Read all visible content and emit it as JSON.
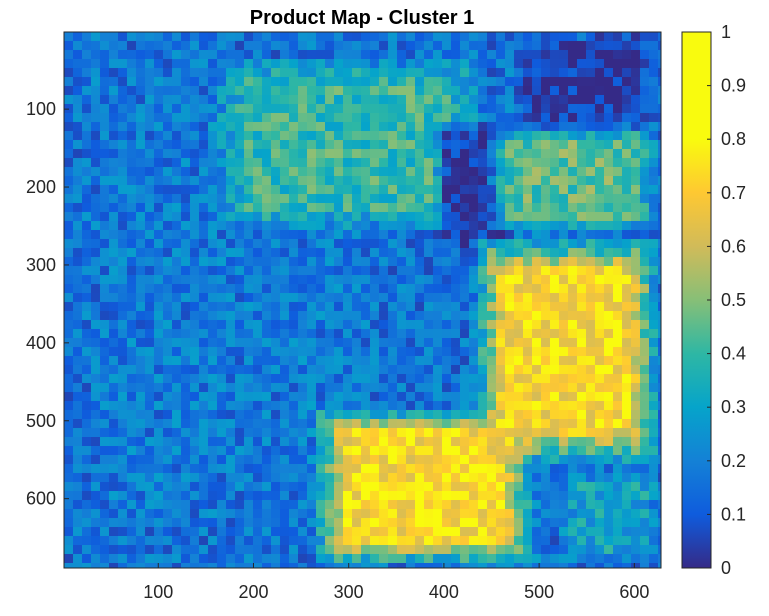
{
  "chart_data": {
    "type": "heatmap",
    "title": "Product Map - Cluster 1",
    "xlabel": "",
    "ylabel": "",
    "xlim": [
      1,
      628
    ],
    "ylim": [
      1,
      689
    ],
    "y_direction": "reversed",
    "grid": false,
    "x_ticks": [
      100,
      200,
      300,
      400,
      500,
      600
    ],
    "x_tick_labels": [
      "100",
      "200",
      "300",
      "400",
      "500",
      "600"
    ],
    "y_ticks": [
      100,
      200,
      300,
      400,
      500,
      600
    ],
    "y_tick_labels": [
      "100",
      "200",
      "300",
      "400",
      "500",
      "600"
    ],
    "colorbar": {
      "position": "right",
      "range": [
        0,
        1
      ],
      "ticks": [
        0,
        0.1,
        0.2,
        0.3,
        0.4,
        0.5,
        0.6,
        0.7,
        0.8,
        0.9,
        1
      ],
      "tick_labels": [
        "0",
        "0.1",
        "0.2",
        "0.3",
        "0.4",
        "0.5",
        "0.6",
        "0.7",
        "0.8",
        "0.9",
        "1"
      ],
      "colormap": "parula"
    },
    "regions": [
      {
        "x": [
          10,
          340
        ],
        "y": [
          20,
          680
        ],
        "value": 0.18
      },
      {
        "x": [
          150,
          450
        ],
        "y": [
          30,
          260
        ],
        "value": 0.4
      },
      {
        "x": [
          470,
          628
        ],
        "y": [
          1,
          130
        ],
        "value": 0.02
      },
      {
        "x": [
          390,
          470
        ],
        "y": [
          110,
          290
        ],
        "value": 0.03
      },
      {
        "x": [
          440,
          628
        ],
        "y": [
          120,
          260
        ],
        "value": 0.45
      },
      {
        "x": [
          430,
          628
        ],
        "y": [
          260,
          560
        ],
        "value": 0.72
      },
      {
        "x": [
          260,
          500
        ],
        "y": [
          480,
          689
        ],
        "value": 0.72
      },
      {
        "x": [
          520,
          628
        ],
        "y": [
          560,
          689
        ],
        "value": 0.3
      }
    ]
  }
}
